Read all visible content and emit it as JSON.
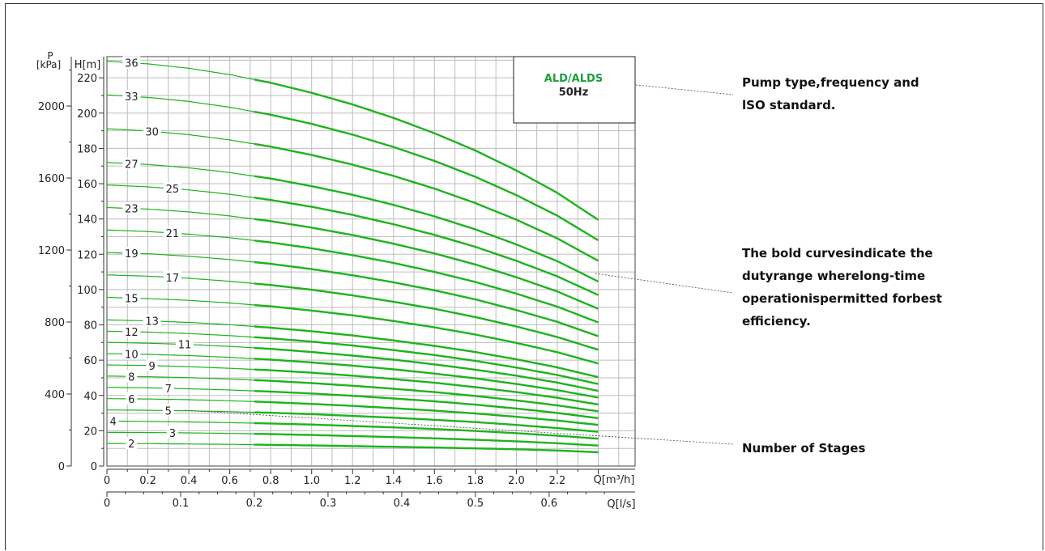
{
  "chart_data": {
    "type": "line",
    "title": "",
    "x": [
      0,
      0.2,
      0.4,
      0.6,
      0.8,
      1.0,
      1.2,
      1.4,
      1.6,
      1.8,
      2.0,
      2.2,
      2.4
    ],
    "xlabel": "Q[m³/h]",
    "xlabel2": "Q[l/s]",
    "ylabel": "H[m]",
    "ylabel2_top": "P",
    "ylabel2_bottom": "[kPa]",
    "xlim": [
      0,
      2.4
    ],
    "ylim": [
      0,
      230
    ],
    "x_ticks": [
      "0",
      "0.2",
      "0.4",
      "0.6",
      "0.8",
      "1.0",
      "1.2",
      "1.4",
      "1.6",
      "1.8",
      "2.0",
      "2.2"
    ],
    "x2_ticks": [
      "0",
      "0.1",
      "0.2",
      "0.3",
      "0.4",
      "0.5",
      "0.6"
    ],
    "y_ticks": [
      "0",
      "20",
      "40",
      "60",
      "80",
      "100",
      "120",
      "140",
      "160",
      "180",
      "200",
      "220"
    ],
    "p_ticks": [
      "0",
      "400",
      "800",
      "1200",
      "1600",
      "2000"
    ],
    "grid": true,
    "bold_from_x": 0.72,
    "stage_count": [
      2,
      3,
      4,
      5,
      6,
      7,
      8,
      9,
      10,
      11,
      12,
      13,
      15,
      17,
      19,
      21,
      23,
      25,
      27,
      30,
      33,
      36
    ],
    "series": [
      {
        "name": "2",
        "values": [
          12.8,
          12.7,
          12.5,
          12.3,
          12,
          11.7,
          11.3,
          10.9,
          10.5,
          10,
          9.5,
          8.8,
          7.8
        ]
      },
      {
        "name": "3",
        "values": [
          19.1,
          19.0,
          18.8,
          18.5,
          18.1,
          17.6,
          17.0,
          16.4,
          15.7,
          14.9,
          14.0,
          12.9,
          11.6
        ]
      },
      {
        "name": "4",
        "values": [
          25.5,
          25.3,
          25.0,
          24.6,
          24.1,
          23.5,
          22.7,
          21.9,
          21.0,
          19.9,
          18.6,
          17.2,
          15.5
        ]
      },
      {
        "name": "5",
        "values": [
          31.8,
          31.6,
          31.3,
          30.8,
          30.2,
          29.4,
          28.4,
          27.4,
          26.2,
          24.9,
          23.3,
          21.5,
          19.4
        ]
      },
      {
        "name": "6",
        "values": [
          38.2,
          38.0,
          37.6,
          37.0,
          36.2,
          35.2,
          34.1,
          32.8,
          31.4,
          29.8,
          27.9,
          25.8,
          23.3
        ]
      },
      {
        "name": "7",
        "values": [
          44.6,
          44.3,
          43.8,
          43.1,
          42.2,
          41.1,
          39.8,
          38.3,
          36.7,
          34.8,
          32.6,
          30.1,
          27.1
        ]
      },
      {
        "name": "8",
        "values": [
          51.0,
          50.6,
          50.1,
          49.3,
          48.3,
          47.0,
          45.5,
          43.8,
          41.9,
          39.7,
          37.2,
          34.4,
          31.0
        ]
      },
      {
        "name": "9",
        "values": [
          57.3,
          57.0,
          56.3,
          55.4,
          54.3,
          52.9,
          51.2,
          49.3,
          47.2,
          44.7,
          41.9,
          38.7,
          34.9
        ]
      },
      {
        "name": "10",
        "values": [
          63.7,
          63.3,
          62.6,
          61.6,
          60.3,
          58.7,
          56.9,
          54.8,
          52.4,
          49.7,
          46.5,
          43.0,
          38.8
        ]
      },
      {
        "name": "11",
        "values": [
          70.1,
          69.6,
          68.9,
          67.8,
          66.4,
          64.6,
          62.6,
          60.3,
          57.6,
          54.6,
          51.2,
          47.3,
          42.6
        ]
      },
      {
        "name": "12",
        "values": [
          76.4,
          75.9,
          75.1,
          73.9,
          72.4,
          70.5,
          68.3,
          65.7,
          62.9,
          59.6,
          55.8,
          51.6,
          46.5
        ]
      },
      {
        "name": "13",
        "values": [
          82.8,
          82.3,
          81.4,
          80.1,
          78.4,
          76.4,
          74.0,
          71.2,
          68.1,
          64.6,
          60.5,
          55.9,
          50.4
        ]
      },
      {
        "name": "15",
        "values": [
          95.6,
          94.9,
          93.9,
          92.4,
          90.5,
          88.1,
          85.4,
          82.2,
          78.6,
          74.5,
          69.8,
          64.5,
          58.1
        ]
      },
      {
        "name": "17",
        "values": [
          108.3,
          107.6,
          106.4,
          104.7,
          102.6,
          99.9,
          96.7,
          93.1,
          89.1,
          84.4,
          79.1,
          73.1,
          65.9
        ]
      },
      {
        "name": "19",
        "values": [
          121.0,
          120.3,
          118.9,
          117.0,
          114.6,
          111.6,
          108.1,
          104.1,
          99.6,
          94.4,
          88.4,
          81.7,
          73.6
        ]
      },
      {
        "name": "21",
        "values": [
          133.8,
          132.9,
          131.4,
          129.4,
          126.7,
          123.4,
          119.5,
          115.1,
          110.0,
          104.3,
          97.7,
          90.3,
          81.4
        ]
      },
      {
        "name": "23",
        "values": [
          146.5,
          145.6,
          144.0,
          141.7,
          138.8,
          135.1,
          130.9,
          126.0,
          120.5,
          114.2,
          107.0,
          98.9,
          89.1
        ]
      },
      {
        "name": "25",
        "values": [
          159.3,
          158.2,
          156.5,
          154.0,
          150.8,
          146.9,
          142.3,
          137.0,
          131.0,
          124.2,
          116.3,
          107.5,
          96.9
        ]
      },
      {
        "name": "27",
        "values": [
          172.0,
          170.9,
          169.0,
          166.3,
          162.9,
          158.6,
          153.7,
          148.0,
          141.5,
          134.1,
          125.6,
          116.1,
          104.6
        ]
      },
      {
        "name": "30",
        "values": [
          191.2,
          189.9,
          187.8,
          184.8,
          181.0,
          176.3,
          170.8,
          164.4,
          157.2,
          149.0,
          139.6,
          129.0,
          116.3
        ]
      },
      {
        "name": "33",
        "values": [
          210.3,
          208.9,
          206.6,
          203.3,
          199.1,
          193.9,
          187.8,
          180.8,
          172.9,
          163.9,
          153.5,
          141.9,
          127.9
        ]
      },
      {
        "name": "36",
        "values": [
          229.4,
          227.9,
          225.4,
          221.8,
          217.2,
          211.5,
          204.9,
          197.3,
          188.6,
          178.8,
          167.5,
          154.8,
          139.5
        ]
      }
    ]
  },
  "legend_box": {
    "line1": "ALD/ALDS",
    "line2": "50Hz"
  },
  "annotations": {
    "pump_type_line1": "Pump type,frequency and",
    "pump_type_line2": "lSO standard.",
    "bold_line1": "The bold curvesindicate the",
    "bold_line2": "dutyrange wherelong-time",
    "bold_line3": "operationispermitted forbest",
    "bold_line4": "efficiency.",
    "stages": "Number of Stages"
  },
  "colors": {
    "curve": "#1db31d",
    "legend_text": "#1f9e3a",
    "grid": "#bdbdbd"
  }
}
